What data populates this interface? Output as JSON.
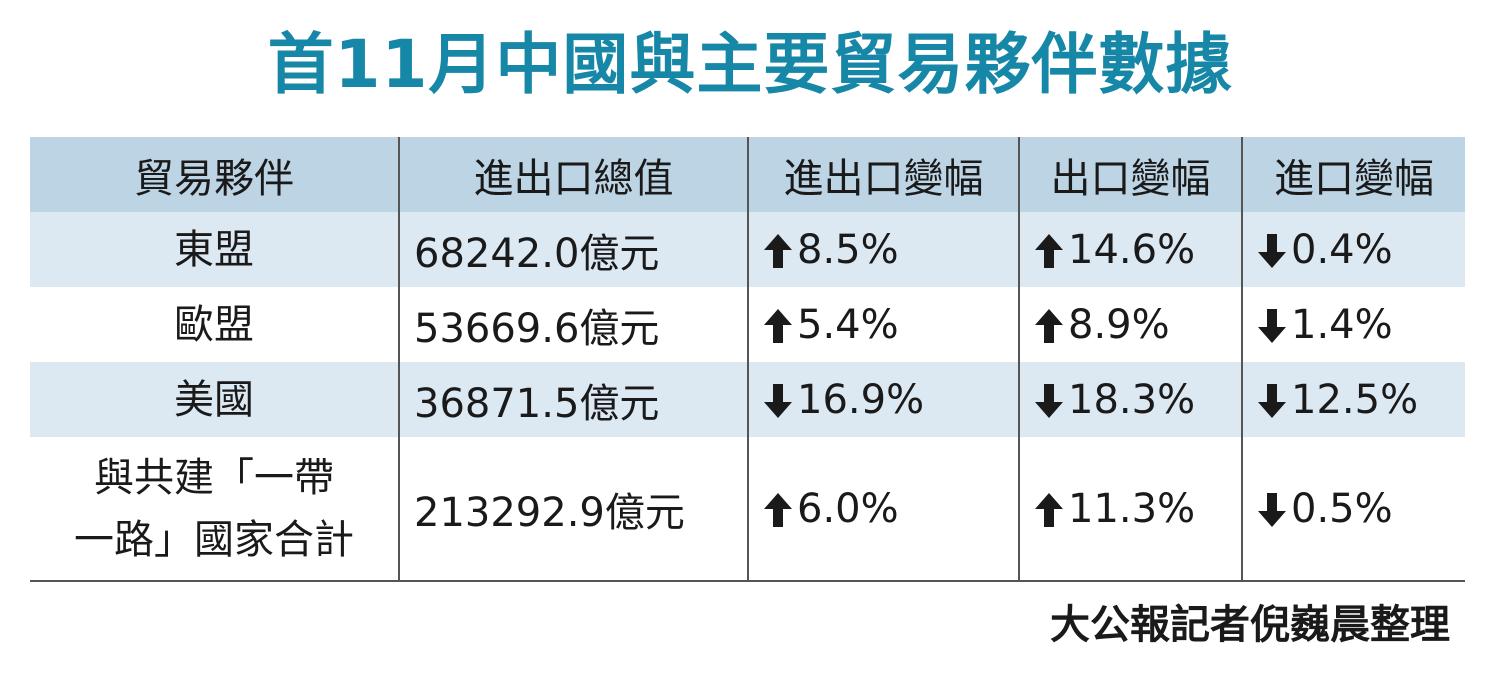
{
  "title": "首11月中國與主要貿易夥伴數據",
  "table": {
    "header": [
      "貿易夥伴",
      "進出口總值",
      "進出口變幅",
      "出口變幅",
      "進口變幅"
    ],
    "rows": [
      [
        {
          "lines": [
            "東盟"
          ]
        },
        {
          "text": "68242.0億元"
        },
        {
          "arrow": "up",
          "text": "8.5%"
        },
        {
          "arrow": "up",
          "text": "14.6%"
        },
        {
          "arrow": "down",
          "text": "0.4%"
        }
      ],
      [
        {
          "lines": [
            "歐盟"
          ]
        },
        {
          "text": "53669.6億元"
        },
        {
          "arrow": "up",
          "text": "5.4%"
        },
        {
          "arrow": "up",
          "text": "8.9%"
        },
        {
          "arrow": "down",
          "text": "1.4%"
        }
      ],
      [
        {
          "lines": [
            "美國"
          ]
        },
        {
          "text": "36871.5億元"
        },
        {
          "arrow": "down",
          "text": "16.9%"
        },
        {
          "arrow": "down",
          "text": "18.3%"
        },
        {
          "arrow": "down",
          "text": "12.5%"
        }
      ],
      [
        {
          "lines": [
            "與共建「一帶",
            "一路」國家合計"
          ]
        },
        {
          "text": "213292.9億元"
        },
        {
          "arrow": "up",
          "text": "6.0%"
        },
        {
          "arrow": "up",
          "text": "11.3%"
        },
        {
          "arrow": "down",
          "text": "0.5%"
        }
      ]
    ]
  },
  "source": "大公報記者倪巍晨整理"
}
